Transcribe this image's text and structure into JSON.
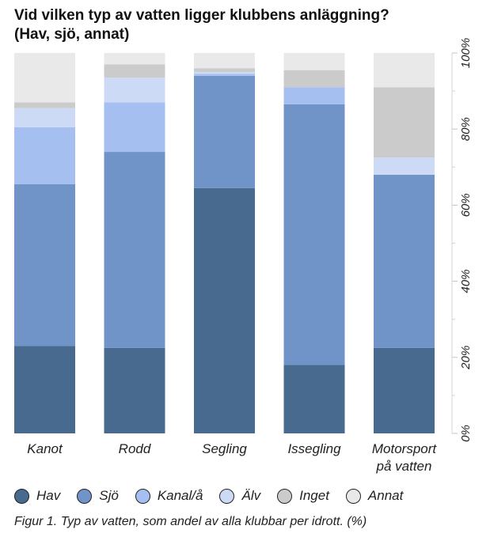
{
  "title_line1": "Vid vilken typ av vatten ligger klubbens anläggning?",
  "title_line2": "(Hav, sjö, annat)",
  "caption": "Figur 1. Typ av vatten, som andel av alla klubbar per idrott. (%)",
  "chart_data": {
    "type": "bar",
    "stacked": true,
    "categories": [
      [
        "Kanot"
      ],
      [
        "Rodd"
      ],
      [
        "Segling"
      ],
      [
        "Issegling"
      ],
      [
        "Motorsport",
        "på vatten"
      ]
    ],
    "series": [
      {
        "name": "Hav",
        "color": "#476a8e",
        "values": [
          23,
          22.5,
          64.5,
          18,
          22.5
        ]
      },
      {
        "name": "Sjö",
        "color": "#7093c8",
        "values": [
          42.5,
          51.5,
          29.5,
          68.5,
          45.5
        ]
      },
      {
        "name": "Kanal/å",
        "color": "#a5bff0",
        "values": [
          15,
          13,
          0.5,
          4.5,
          0
        ]
      },
      {
        "name": "Älv",
        "color": "#ccdaf6",
        "values": [
          5,
          6.5,
          0.5,
          0,
          4.5
        ]
      },
      {
        "name": "Inget",
        "color": "#cbcbcb",
        "values": [
          1.5,
          3.5,
          1,
          4.5,
          18.5
        ]
      },
      {
        "name": "Annat",
        "color": "#e9e9e9",
        "values": [
          13,
          3,
          4,
          4.5,
          9
        ]
      }
    ],
    "yaxis": {
      "ticks": [
        0,
        20,
        40,
        60,
        80,
        100
      ],
      "tick_labels": [
        "0%",
        "20%",
        "40%",
        "60%",
        "80%",
        "100%"
      ],
      "ylim": [
        0,
        100
      ],
      "position": "right"
    },
    "grid": false,
    "legend_position": "bottom"
  }
}
